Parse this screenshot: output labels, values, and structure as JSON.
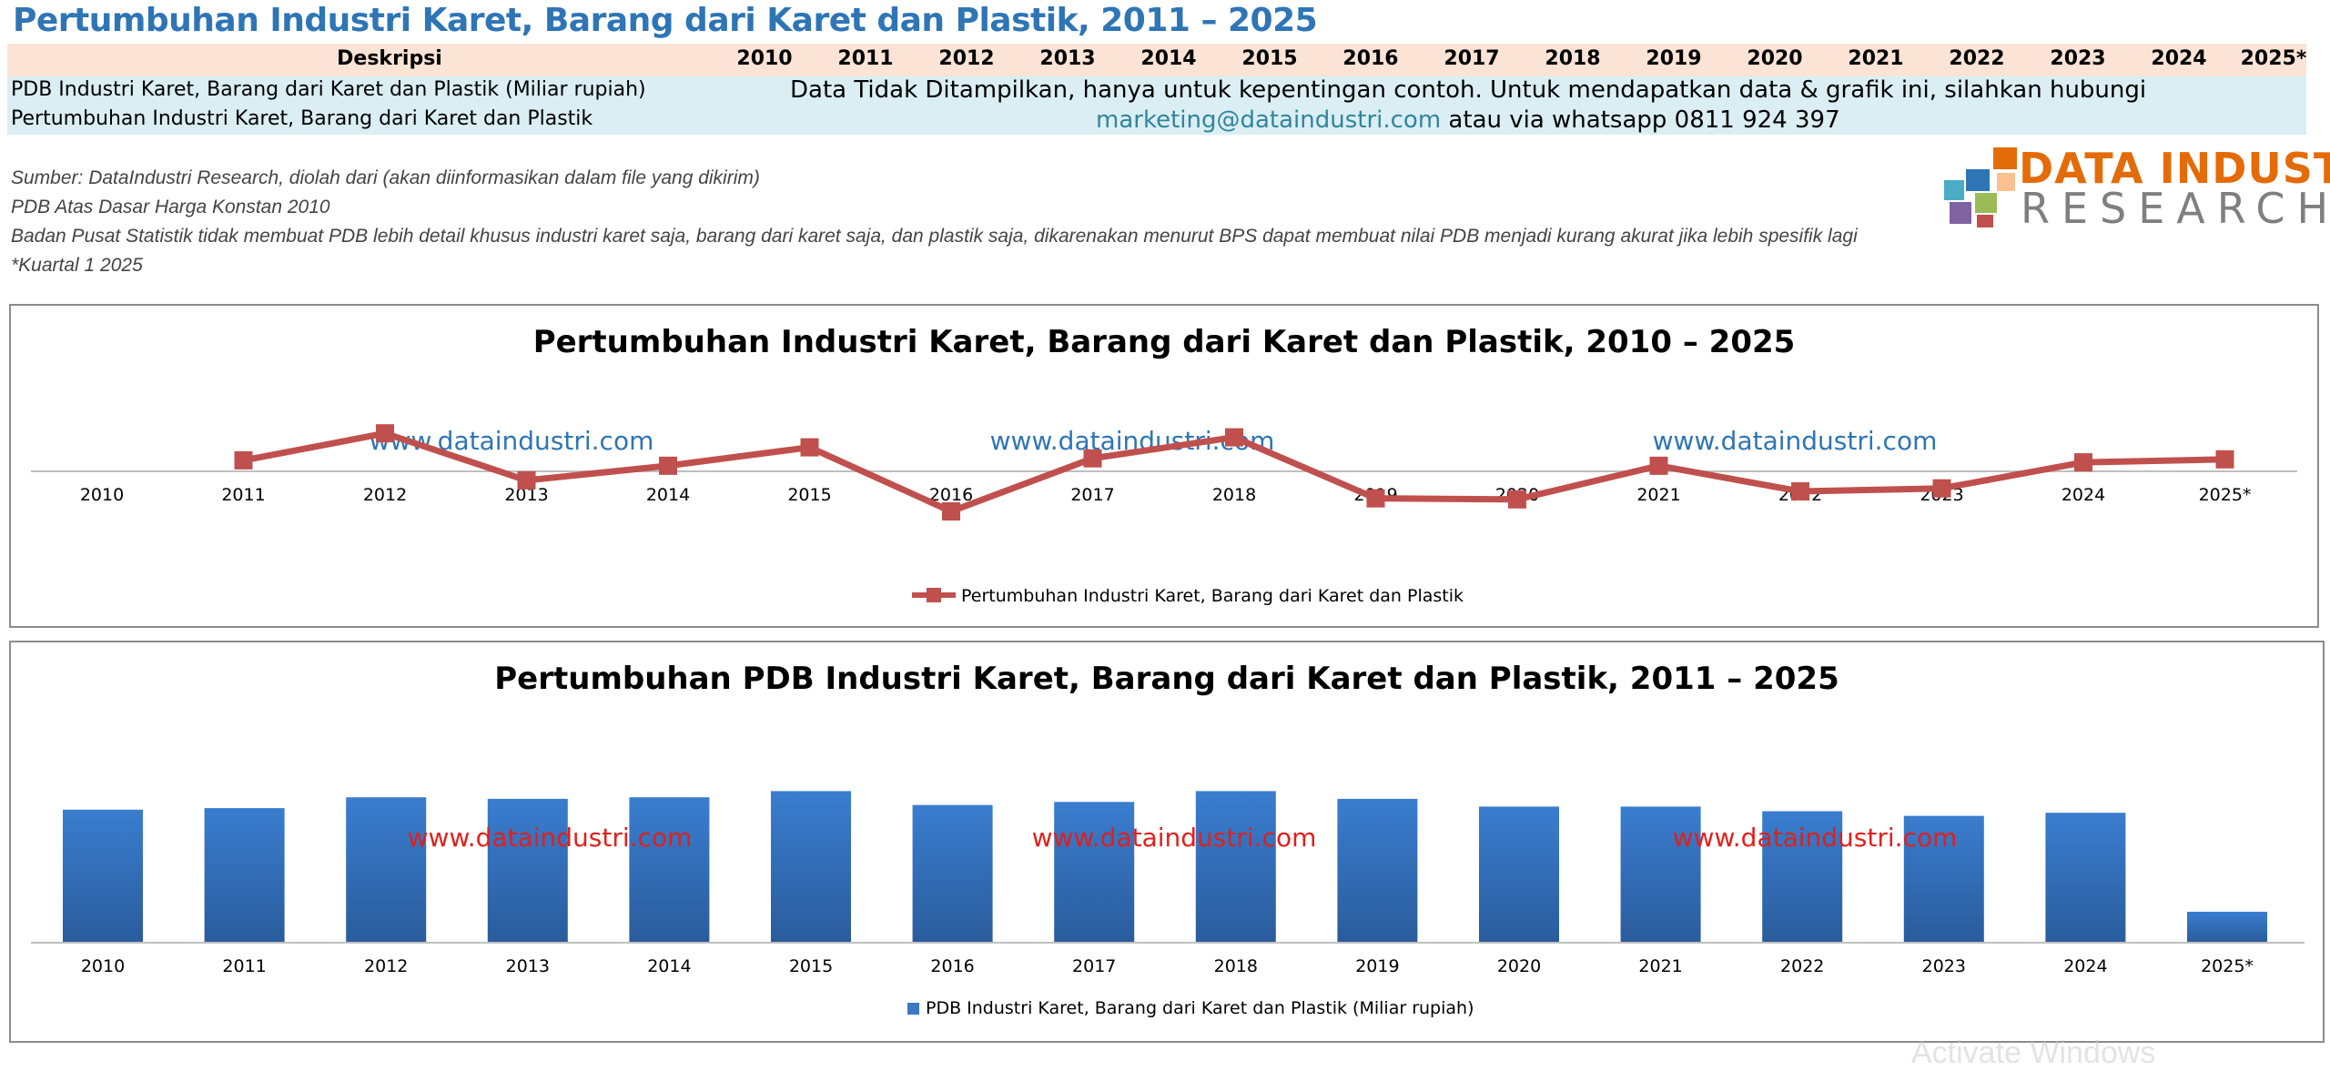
{
  "page_title": "Pertumbuhan Industri Karet, Barang dari Karet dan Plastik, 2011 – 2025",
  "table": {
    "header_label": "Deskripsi",
    "years": [
      "2010",
      "2011",
      "2012",
      "2013",
      "2014",
      "2015",
      "2016",
      "2017",
      "2018",
      "2019",
      "2020",
      "2021",
      "2022",
      "2023",
      "2024",
      "2025*"
    ],
    "rows": [
      "PDB Industri Karet, Barang dari Karet dan Plastik (Miliar rupiah)",
      "Pertumbuhan Industri Karet, Barang dari Karet dan Plastik"
    ],
    "notice_line1": "Data Tidak Ditampilkan, hanya untuk kepentingan contoh. Untuk mendapatkan data & grafik  ini, silahkan hubungi",
    "notice_email": "marketing@dataindustri.com",
    "notice_tail": " atau via whatsapp 0811 924 397"
  },
  "notes": [
    "Sumber: DataIndustri Research, diolah dari (akan diinformasikan dalam file yang dikirim)",
    "PDB Atas Dasar Harga Konstan 2010",
    "Badan Pusat Statistik tidak membuat PDB lebih detail khusus industri karet saja, barang dari karet saja, dan plastik saja, dikarenakan menurut BPS dapat membuat nilai PDB menjadi kurang akurat jika lebih spesifik lagi",
    "*Kuartal 1 2025"
  ],
  "logo": {
    "line1": "DATA INDUSTRI",
    "line2": "RESEARCH",
    "colors": [
      "#E36C09",
      "#2E75B6",
      "#7F7F7F"
    ]
  },
  "watermark": "www.dataindustri.com",
  "activate_text": "Activate Windows",
  "chart_data": [
    {
      "type": "line",
      "title": "Pertumbuhan Industri Karet, Barang dari Karet dan Plastik, 2010 – 2025",
      "x": [
        "2010",
        "2011",
        "2012",
        "2013",
        "2014",
        "2015",
        "2016",
        "2017",
        "2018",
        "2019",
        "2020",
        "2021",
        "2022",
        "2023",
        "2024",
        "2025*"
      ],
      "series": [
        {
          "name": "Pertumbuhan Industri Karet, Barang dari Karet dan Plastik",
          "color": "#C0504D",
          "values": [
            null,
            5.5,
            19.0,
            -4.5,
            2.8,
            12.0,
            -20.0,
            6.5,
            17.0,
            -13.5,
            -14.0,
            2.8,
            -10.0,
            -8.5,
            4.5,
            6.0
          ]
        }
      ],
      "ylim": [
        -25,
        25
      ],
      "legend": "bottom",
      "grid": false
    },
    {
      "type": "bar",
      "title": "Pertumbuhan PDB Industri Karet, Barang dari Karet dan Plastik, 2011 – 2025",
      "categories": [
        "2010",
        "2011",
        "2012",
        "2013",
        "2014",
        "2015",
        "2016",
        "2017",
        "2018",
        "2019",
        "2020",
        "2021",
        "2022",
        "2023",
        "2024",
        "2025*"
      ],
      "series": [
        {
          "name": "PDB Industri Karet, Barang dari Karet dan Plastik (Miliar rupiah)",
          "color": "#3A78C3",
          "values": [
            86,
            87,
            94,
            93,
            94,
            98,
            89,
            91,
            98,
            93,
            88,
            88,
            85,
            82,
            84,
            20
          ]
        }
      ],
      "ylim": [
        0,
        110
      ],
      "legend": "bottom",
      "grid": false
    }
  ]
}
